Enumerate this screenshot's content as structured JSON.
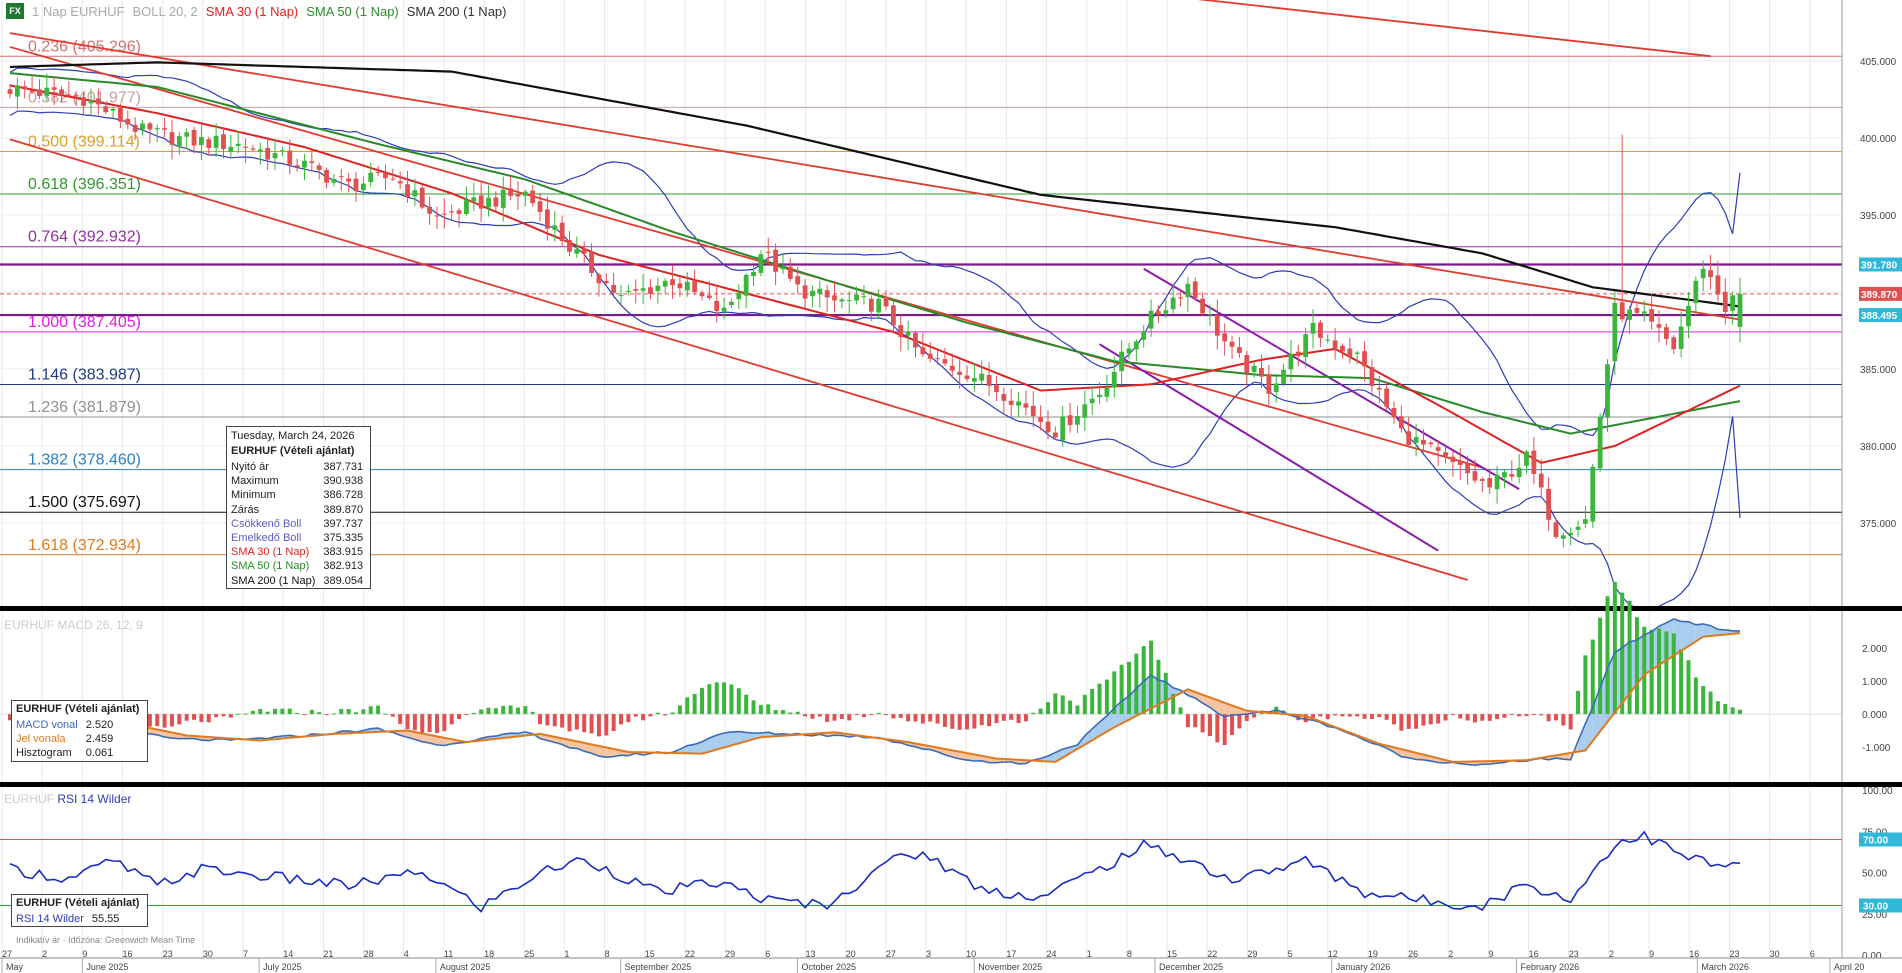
{
  "legend": {
    "badge": "FX",
    "symbol": "1 Nap EURHUF",
    "boll": "BOLL 20, 2",
    "sma30": "SMA 30 (1 Nap)",
    "sma50": "SMA 50 (1 Nap)",
    "sma200": "SMA 200 (1 Nap)"
  },
  "colors": {
    "up": "#3bb53b",
    "down": "#e05050",
    "sma30": "#dd2222",
    "sma50": "#2a8a2a",
    "sma200": "#111111",
    "boll": "#2d3db8",
    "trend": "#e03b2f",
    "channel": "#8a1aa8",
    "macd": "#3b6cb8",
    "signal": "#e07a20",
    "rsi": "#1a2cc0"
  },
  "fib_levels": [
    {
      "label": "0.236 (405.296)",
      "value": 405.296,
      "color": "#d47070"
    },
    {
      "label": "0.382 (401.977)",
      "value": 401.977,
      "color": "#c9a0a0"
    },
    {
      "label": "0.500 (399.114)",
      "value": 399.114,
      "color": "#e0a020"
    },
    {
      "label": "0.618 (396.351)",
      "value": 396.351,
      "color": "#2f9a2f"
    },
    {
      "label": "0.764 (392.932)",
      "value": 392.932,
      "color": "#9030a0"
    },
    {
      "label": "1.000 (387.405)",
      "value": 387.405,
      "color": "#e020e0"
    },
    {
      "label": "1.146 (383.987)",
      "value": 383.987,
      "color": "#203a80"
    },
    {
      "label": "1.236 (381.879)",
      "value": 381.879,
      "color": "#909090"
    },
    {
      "label": "1.382 (378.460)",
      "value": 378.46,
      "color": "#2a80c0"
    },
    {
      "label": "1.500 (375.697)",
      "value": 375.697,
      "color": "#111111"
    },
    {
      "label": "1.618 (372.934)",
      "value": 372.934,
      "color": "#e07a20"
    }
  ],
  "price_tags": [
    {
      "text": "391.780",
      "value": 391.78,
      "color": "#2fb8d8"
    },
    {
      "text": "389.870",
      "value": 389.87,
      "color": "#e05050"
    },
    {
      "text": "388.495",
      "value": 388.495,
      "color": "#2fb8d8"
    }
  ],
  "info_box": {
    "date": "Tuesday, March 24, 2026",
    "title": "EURHUF (Vételi ajánlat)",
    "rows": [
      {
        "label": "Nyitó ár",
        "value": "387.731"
      },
      {
        "label": "Maximum",
        "value": "390.938"
      },
      {
        "label": "Minimum",
        "value": "386.728"
      },
      {
        "label": "Zárás",
        "value": "389.870"
      },
      {
        "label": "Csökkenő Boll",
        "value": "397.737"
      },
      {
        "label": "Emelkedő Boll",
        "value": "375.335"
      },
      {
        "label": "SMA 30 (1 Nap)",
        "value": "383.915"
      },
      {
        "label": "SMA 50 (1 Nap)",
        "value": "382.913"
      },
      {
        "label": "SMA 200 (1 Nap)",
        "value": "389.054"
      }
    ]
  },
  "macd_panel": {
    "title": "EURHUF MACD 26, 12, 9",
    "box_title": "EURHUF (Vételi ajánlat)",
    "rows": [
      {
        "label": "MACD vonal",
        "value": "2.520"
      },
      {
        "label": "Jel vonala",
        "value": "2.459"
      },
      {
        "label": "Hisztogram",
        "value": "0.061"
      }
    ],
    "ticks": [
      {
        "text": "2.000",
        "value": 2
      },
      {
        "text": "1.000",
        "value": 1
      },
      {
        "text": "0.000",
        "value": 0
      },
      {
        "text": "-1.000",
        "value": -1
      }
    ]
  },
  "rsi_panel": {
    "title_a": "EURHUF",
    "title_b": "RSI 14 Wilder",
    "box_title": "EURHUF (Vételi ajánlat)",
    "rows": [
      {
        "label": "RSI 14 Wilder",
        "value": "55.55"
      }
    ],
    "ticks": [
      {
        "text": "100.00",
        "value": 100
      },
      {
        "text": "75.00",
        "value": 75
      },
      {
        "text": "50.00",
        "value": 50
      },
      {
        "text": "25.00",
        "value": 25
      },
      {
        "text": "0.00",
        "value": 0
      }
    ],
    "tags": [
      {
        "text": "70.00",
        "value": 70
      },
      {
        "text": "30.00",
        "value": 30
      }
    ]
  },
  "footer_note": "Indikatív ár · Időzóna: Greenwich Mean Time",
  "price_axis_ticks": [
    {
      "text": "405.000",
      "value": 405
    },
    {
      "text": "400.000",
      "value": 400
    },
    {
      "text": "395.000",
      "value": 395
    },
    {
      "text": "390.000",
      "value": 390
    },
    {
      "text": "385.000",
      "value": 385
    },
    {
      "text": "380.000",
      "value": 380
    },
    {
      "text": "375.000",
      "value": 375
    }
  ],
  "x_day_ticks": [
    "27",
    "2",
    "9",
    "16",
    "23",
    "30",
    "7",
    "14",
    "21",
    "28",
    "4",
    "11",
    "18",
    "25",
    "1",
    "8",
    "15",
    "22",
    "29",
    "6",
    "13",
    "20",
    "27",
    "3",
    "10",
    "17",
    "24",
    "1",
    "8",
    "15",
    "22",
    "29",
    "5",
    "12",
    "19",
    "26",
    "2",
    "9",
    "16",
    "23",
    "2",
    "9",
    "16",
    "23",
    "30",
    "6"
  ],
  "x_months": [
    {
      "label": "May",
      "day_index": 0
    },
    {
      "label": "June 2025",
      "day_index": 2
    },
    {
      "label": "July 2025",
      "day_index": 6.4
    },
    {
      "label": "August 2025",
      "day_index": 10.8
    },
    {
      "label": "September 2025",
      "day_index": 15.4
    },
    {
      "label": "October 2025",
      "day_index": 19.8
    },
    {
      "label": "November 2025",
      "day_index": 24.2
    },
    {
      "label": "December 2025",
      "day_index": 28.7
    },
    {
      "label": "January 2026",
      "day_index": 33.1
    },
    {
      "label": "February 2026",
      "day_index": 37.7
    },
    {
      "label": "March 2026",
      "day_index": 42.2
    },
    {
      "label": "April 20",
      "day_index": 45.5
    }
  ],
  "chart_data": {
    "type": "candlestick",
    "instrument": "EURHUF",
    "timeframe": "1 Nap",
    "ylim": [
      370,
      407
    ],
    "close_anchors": [
      {
        "bar": 0,
        "close": 403.2
      },
      {
        "bar": 10,
        "close": 402.6
      },
      {
        "bar": 18,
        "close": 400.4
      },
      {
        "bar": 25,
        "close": 399.8
      },
      {
        "bar": 32,
        "close": 399.5
      },
      {
        "bar": 40,
        "close": 398.2
      },
      {
        "bar": 46,
        "close": 396.9
      },
      {
        "bar": 52,
        "close": 397.5
      },
      {
        "bar": 58,
        "close": 394.8
      },
      {
        "bar": 64,
        "close": 395.8
      },
      {
        "bar": 70,
        "close": 396.4
      },
      {
        "bar": 76,
        "close": 392.9
      },
      {
        "bar": 83,
        "close": 389.6
      },
      {
        "bar": 90,
        "close": 390.8
      },
      {
        "bar": 97,
        "close": 388.6
      },
      {
        "bar": 102,
        "close": 392.6
      },
      {
        "bar": 107,
        "close": 390.2
      },
      {
        "bar": 112,
        "close": 389.4
      },
      {
        "bar": 118,
        "close": 389.2
      },
      {
        "bar": 124,
        "close": 385.7
      },
      {
        "bar": 130,
        "close": 384.8
      },
      {
        "bar": 136,
        "close": 383.2
      },
      {
        "bar": 142,
        "close": 381.0
      },
      {
        "bar": 148,
        "close": 383.5
      },
      {
        "bar": 154,
        "close": 387.8
      },
      {
        "bar": 160,
        "close": 390.5
      },
      {
        "bar": 166,
        "close": 386.0
      },
      {
        "bar": 171,
        "close": 383.8
      },
      {
        "bar": 177,
        "close": 387.5
      },
      {
        "bar": 183,
        "close": 385.8
      },
      {
        "bar": 189,
        "close": 380.9
      },
      {
        "bar": 195,
        "close": 379.0
      },
      {
        "bar": 201,
        "close": 377.3
      },
      {
        "bar": 206,
        "close": 379.2
      },
      {
        "bar": 210,
        "close": 374.5
      },
      {
        "bar": 214,
        "close": 375.2
      },
      {
        "bar": 218,
        "close": 388.8
      },
      {
        "bar": 222,
        "close": 388.2
      },
      {
        "bar": 226,
        "close": 386.4
      },
      {
        "bar": 230,
        "close": 391.8
      },
      {
        "bar": 233,
        "close": 389.0
      },
      {
        "bar": 235,
        "close": 389.87
      }
    ],
    "sma200_anchors": [
      {
        "bar": 0,
        "value": 404.6
      },
      {
        "bar": 20,
        "value": 404.9
      },
      {
        "bar": 60,
        "value": 404.3
      },
      {
        "bar": 100,
        "value": 400.8
      },
      {
        "bar": 140,
        "value": 396.3
      },
      {
        "bar": 180,
        "value": 394.2
      },
      {
        "bar": 200,
        "value": 392.5
      },
      {
        "bar": 215,
        "value": 390.3
      },
      {
        "bar": 235,
        "value": 389.054
      }
    ],
    "sma50_anchors": [
      {
        "bar": 0,
        "value": 404.2
      },
      {
        "bar": 20,
        "value": 403.3
      },
      {
        "bar": 50,
        "value": 399.6
      },
      {
        "bar": 70,
        "value": 397.3
      },
      {
        "bar": 90,
        "value": 393.9
      },
      {
        "bar": 110,
        "value": 390.9
      },
      {
        "bar": 130,
        "value": 388.0
      },
      {
        "bar": 150,
        "value": 385.5
      },
      {
        "bar": 170,
        "value": 384.6
      },
      {
        "bar": 185,
        "value": 384.4
      },
      {
        "bar": 200,
        "value": 382.2
      },
      {
        "bar": 212,
        "value": 380.8
      },
      {
        "bar": 235,
        "value": 382.913
      }
    ],
    "sma30_anchors": [
      {
        "bar": 0,
        "value": 403.4
      },
      {
        "bar": 20,
        "value": 401.6
      },
      {
        "bar": 40,
        "value": 399.4
      },
      {
        "bar": 60,
        "value": 396.4
      },
      {
        "bar": 80,
        "value": 392.4
      },
      {
        "bar": 100,
        "value": 389.9
      },
      {
        "bar": 120,
        "value": 387.4
      },
      {
        "bar": 140,
        "value": 383.6
      },
      {
        "bar": 155,
        "value": 384.0
      },
      {
        "bar": 170,
        "value": 385.6
      },
      {
        "bar": 180,
        "value": 386.3
      },
      {
        "bar": 195,
        "value": 382.4
      },
      {
        "bar": 208,
        "value": 378.9
      },
      {
        "bar": 218,
        "value": 380.0
      },
      {
        "bar": 235,
        "value": 383.915
      }
    ],
    "boll_upper_last": 397.737,
    "boll_lower_last": 375.335,
    "trendlines": [
      {
        "from": {
          "bar": 0,
          "value": 406.8
        },
        "to": {
          "bar": 235,
          "value": 388.2
        }
      },
      {
        "from": {
          "bar": 0,
          "value": 405.9
        },
        "to": {
          "bar": 200,
          "value": 378.6
        }
      },
      {
        "from": {
          "bar": 0,
          "value": 399.9
        },
        "to": {
          "bar": 198,
          "value": 371.3
        }
      },
      {
        "from": {
          "bar": 105,
          "value": 412.0
        },
        "to": {
          "bar": 231,
          "value": 405.3
        }
      }
    ],
    "channel": [
      {
        "from": {
          "bar": 154,
          "value": 391.5
        },
        "to": {
          "bar": 205,
          "value": 377.2
        }
      },
      {
        "from": {
          "bar": 148,
          "value": 386.6
        },
        "to": {
          "bar": 194,
          "value": 373.2
        }
      }
    ],
    "macd": {
      "ylim": [
        -2.0,
        3.1
      ],
      "macd_anchors": [
        {
          "bar": 0,
          "value": -0.1
        },
        {
          "bar": 10,
          "value": -0.25
        },
        {
          "bar": 22,
          "value": -0.75
        },
        {
          "bar": 30,
          "value": -0.8
        },
        {
          "bar": 40,
          "value": -0.65
        },
        {
          "bar": 50,
          "value": -0.45
        },
        {
          "bar": 58,
          "value": -0.95
        },
        {
          "bar": 70,
          "value": -0.55
        },
        {
          "bar": 80,
          "value": -1.3
        },
        {
          "bar": 90,
          "value": -1.15
        },
        {
          "bar": 97,
          "value": -0.55
        },
        {
          "bar": 106,
          "value": -0.6
        },
        {
          "bar": 118,
          "value": -0.7
        },
        {
          "bar": 130,
          "value": -1.4
        },
        {
          "bar": 138,
          "value": -1.5
        },
        {
          "bar": 145,
          "value": -0.9
        },
        {
          "bar": 155,
          "value": 1.2
        },
        {
          "bar": 165,
          "value": -0.05
        },
        {
          "bar": 172,
          "value": 0.1
        },
        {
          "bar": 180,
          "value": -0.4
        },
        {
          "bar": 190,
          "value": -1.35
        },
        {
          "bar": 200,
          "value": -1.55
        },
        {
          "bar": 208,
          "value": -1.35
        },
        {
          "bar": 212,
          "value": -1.4
        },
        {
          "bar": 218,
          "value": 1.9
        },
        {
          "bar": 226,
          "value": 2.9
        },
        {
          "bar": 232,
          "value": 2.6
        },
        {
          "bar": 235,
          "value": 2.52
        }
      ],
      "signal_anchors": [
        {
          "bar": 0,
          "value": -0.05
        },
        {
          "bar": 12,
          "value": -0.1
        },
        {
          "bar": 24,
          "value": -0.65
        },
        {
          "bar": 34,
          "value": -0.8
        },
        {
          "bar": 44,
          "value": -0.6
        },
        {
          "bar": 54,
          "value": -0.5
        },
        {
          "bar": 62,
          "value": -0.85
        },
        {
          "bar": 72,
          "value": -0.6
        },
        {
          "bar": 84,
          "value": -1.15
        },
        {
          "bar": 94,
          "value": -1.2
        },
        {
          "bar": 102,
          "value": -0.7
        },
        {
          "bar": 112,
          "value": -0.55
        },
        {
          "bar": 122,
          "value": -0.85
        },
        {
          "bar": 134,
          "value": -1.35
        },
        {
          "bar": 142,
          "value": -1.45
        },
        {
          "bar": 150,
          "value": -0.4
        },
        {
          "bar": 160,
          "value": 0.75
        },
        {
          "bar": 168,
          "value": 0.1
        },
        {
          "bar": 176,
          "value": -0.05
        },
        {
          "bar": 186,
          "value": -0.9
        },
        {
          "bar": 196,
          "value": -1.45
        },
        {
          "bar": 206,
          "value": -1.4
        },
        {
          "bar": 214,
          "value": -1.1
        },
        {
          "bar": 222,
          "value": 1.2
        },
        {
          "bar": 230,
          "value": 2.35
        },
        {
          "bar": 235,
          "value": 2.459
        }
      ]
    },
    "rsi": {
      "ylim": [
        0,
        100
      ],
      "overbought": 70,
      "oversold": 30,
      "anchors": [
        {
          "bar": 0,
          "value": 52
        },
        {
          "bar": 8,
          "value": 46
        },
        {
          "bar": 14,
          "value": 57
        },
        {
          "bar": 20,
          "value": 42
        },
        {
          "bar": 26,
          "value": 52
        },
        {
          "bar": 36,
          "value": 47
        },
        {
          "bar": 46,
          "value": 42
        },
        {
          "bar": 56,
          "value": 50
        },
        {
          "bar": 64,
          "value": 29
        },
        {
          "bar": 72,
          "value": 50
        },
        {
          "bar": 78,
          "value": 58
        },
        {
          "bar": 88,
          "value": 38
        },
        {
          "bar": 96,
          "value": 44
        },
        {
          "bar": 104,
          "value": 32
        },
        {
          "bar": 112,
          "value": 31
        },
        {
          "bar": 118,
          "value": 55
        },
        {
          "bar": 124,
          "value": 62
        },
        {
          "bar": 132,
          "value": 40
        },
        {
          "bar": 140,
          "value": 35
        },
        {
          "bar": 148,
          "value": 52
        },
        {
          "bar": 154,
          "value": 66
        },
        {
          "bar": 160,
          "value": 58
        },
        {
          "bar": 166,
          "value": 45
        },
        {
          "bar": 176,
          "value": 57
        },
        {
          "bar": 184,
          "value": 38
        },
        {
          "bar": 192,
          "value": 33
        },
        {
          "bar": 200,
          "value": 30
        },
        {
          "bar": 206,
          "value": 43
        },
        {
          "bar": 212,
          "value": 33
        },
        {
          "bar": 218,
          "value": 68
        },
        {
          "bar": 222,
          "value": 72
        },
        {
          "bar": 228,
          "value": 59
        },
        {
          "bar": 233,
          "value": 53
        },
        {
          "bar": 235,
          "value": 55.55
        }
      ]
    }
  }
}
